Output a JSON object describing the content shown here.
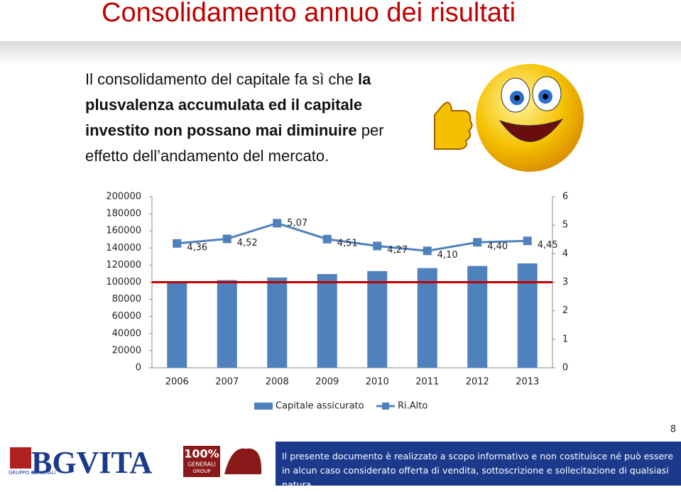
{
  "title": "Consolidamento annuo dei risultati",
  "body": {
    "before": "Il consolidamento del capitale fa sì che ",
    "bold": "la plusvalenza accumulata ed il capitale investito  non possano mai diminuire",
    "after": " per effetto dell’andamento del mercato."
  },
  "chart_data": {
    "type": "bar-line",
    "categories": [
      "2006",
      "2007",
      "2008",
      "2009",
      "2010",
      "2011",
      "2012",
      "2013"
    ],
    "series": [
      {
        "name": "Capitale assicurato",
        "type": "bar",
        "color": "#4f81bd",
        "values": [
          100000,
          102500,
          105500,
          109500,
          113000,
          116500,
          119000,
          122000
        ]
      },
      {
        "name": "Ri.Alto",
        "type": "line",
        "axis": "y2",
        "color": "#4f81bd",
        "values": [
          4.36,
          4.52,
          5.07,
          4.51,
          4.27,
          4.1,
          4.4,
          4.45
        ],
        "value_labels": [
          "4,36",
          "4,52",
          "5,07",
          "4,51",
          "4,27",
          "4,10",
          "4,40",
          "4,45"
        ]
      }
    ],
    "ylim": [
      0,
      200000
    ],
    "yticks": [
      0,
      20000,
      40000,
      60000,
      80000,
      100000,
      120000,
      140000,
      160000,
      180000,
      200000
    ],
    "y2lim": [
      0,
      6
    ],
    "y2ticks": [
      0,
      1,
      2,
      3,
      4,
      5,
      6
    ],
    "reference_line": {
      "value": 100000,
      "color": "#c00000"
    }
  },
  "page_number": "8",
  "footer": {
    "logo": "BGVITA",
    "logo_small": "GRUPPO GENERALI",
    "badge_top": "100%",
    "badge_mid": "GENERALI",
    "badge_bottom": "GROUP",
    "disclaimer": "Il presente documento è realizzato a scopo informativo e non costituisce né può essere in alcun caso considerato offerta di vendita, sottoscrizione e sollecitazione di qualsiasi natura"
  }
}
